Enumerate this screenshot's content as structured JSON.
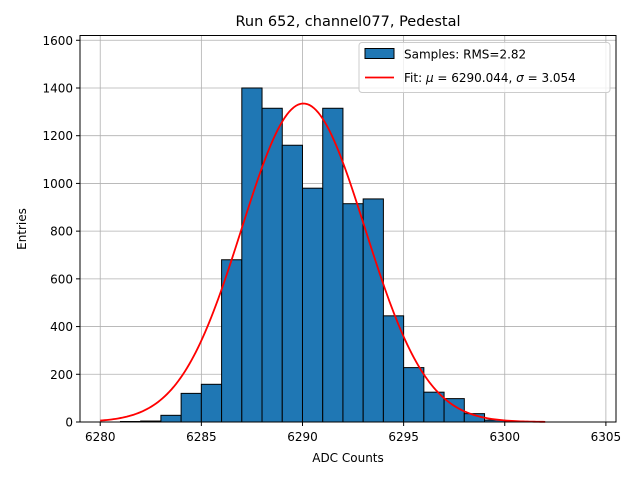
{
  "chart_data": {
    "type": "bar",
    "title": "Run 652, channel077, Pedestal",
    "xlabel": "ADC Counts",
    "ylabel": "Entries",
    "xlim": [
      6279,
      6305.5
    ],
    "ylim": [
      0,
      1620
    ],
    "grid": true,
    "legend_position": "top-right",
    "x_ticks": [
      6280,
      6285,
      6290,
      6295,
      6300,
      6305
    ],
    "y_ticks": [
      0,
      200,
      400,
      600,
      800,
      1000,
      1200,
      1400,
      1600
    ],
    "bin_width": 1,
    "bins": [
      {
        "x": 6281,
        "count": 2
      },
      {
        "x": 6282,
        "count": 4
      },
      {
        "x": 6283,
        "count": 28
      },
      {
        "x": 6284,
        "count": 120
      },
      {
        "x": 6285,
        "count": 158
      },
      {
        "x": 6286,
        "count": 680
      },
      {
        "x": 6287,
        "count": 1400
      },
      {
        "x": 6288,
        "count": 1315
      },
      {
        "x": 6289,
        "count": 1160
      },
      {
        "x": 6290,
        "count": 980
      },
      {
        "x": 6291,
        "count": 1315
      },
      {
        "x": 6292,
        "count": 915
      },
      {
        "x": 6293,
        "count": 935
      },
      {
        "x": 6294,
        "count": 445
      },
      {
        "x": 6295,
        "count": 228
      },
      {
        "x": 6296,
        "count": 125
      },
      {
        "x": 6297,
        "count": 98
      },
      {
        "x": 6298,
        "count": 35
      },
      {
        "x": 6299,
        "count": 8
      },
      {
        "x": 6300,
        "count": 2
      }
    ],
    "fit": {
      "mu": 6290.044,
      "sigma": 3.054,
      "peak": 1335,
      "x_range": [
        6280,
        6302
      ]
    },
    "series": [
      {
        "name": "Samples: RMS=2.82",
        "kind": "histogram",
        "color": "#1f77b4"
      },
      {
        "name": "Fit",
        "kind": "line",
        "color": "#ff0000"
      }
    ],
    "legend": {
      "samples_label": "Samples: RMS=2.82",
      "fit_prefix": "Fit: ",
      "fit_mu_symbol": "μ",
      "fit_mu_value": " = 6290.044, ",
      "fit_sigma_symbol": "σ",
      "fit_sigma_value": " = 3.054"
    }
  }
}
